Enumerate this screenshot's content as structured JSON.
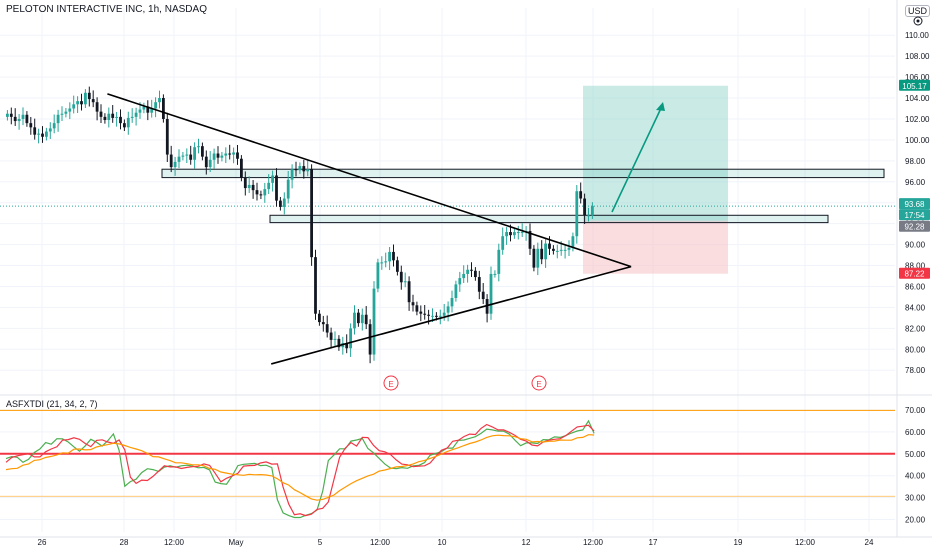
{
  "header": {
    "symbol_title": "PELOTON INTERACTIVE INC, 1h, NASDAQ",
    "currency_badge": "USD"
  },
  "price_axis": {
    "ticks": [
      "110.00",
      "108.00",
      "106.00",
      "104.00",
      "102.00",
      "100.00",
      "98.00",
      "96.00",
      "94.00",
      "92.00",
      "90.00",
      "88.00",
      "86.00",
      "84.00",
      "82.00",
      "80.00",
      "78.00"
    ],
    "tick_values": [
      110,
      108,
      106,
      104,
      102,
      100,
      98,
      96,
      94,
      92,
      90,
      88,
      86,
      84,
      82,
      80,
      78
    ]
  },
  "price_badges": {
    "target": {
      "text": "105.17",
      "color": "#089981"
    },
    "current": {
      "text": "93.68",
      "color": "#26a69a"
    },
    "countdown": {
      "text": "17:54",
      "color": "#26a69a"
    },
    "entry": {
      "text": "92.28",
      "color": "#787b86"
    },
    "stop": {
      "text": "87.22",
      "color": "#f23645"
    }
  },
  "time_axis": {
    "ticks": [
      "26",
      "28",
      "12:00",
      "May",
      "5",
      "12:00",
      "10",
      "12",
      "12:00",
      "17",
      "19",
      "12:00",
      "24"
    ]
  },
  "events": [
    "E",
    "E"
  ],
  "indicator": {
    "title": "ASFXTDI (21, 34, 2, 7)",
    "ticks": [
      "70.00",
      "60.00",
      "50.00",
      "40.00",
      "30.00",
      "20.00"
    ],
    "tick_values": [
      70,
      60,
      50,
      40,
      30,
      20
    ],
    "levels": {
      "upper": 68,
      "middle": 50,
      "lower": 32
    }
  },
  "colors": {
    "up": "#26a69a",
    "down": "#131722",
    "trendline": "#000000",
    "zone": "#26a69a",
    "reward": "#9ed9d1",
    "risk": "#f7c6c9",
    "ind_green": "#4caf50",
    "ind_red": "#f23645",
    "ind_orange": "#ff9800",
    "ind_level": "#f23645",
    "ind_band": "#ff9800",
    "axis_text": "#131722"
  },
  "chart_data": [
    {
      "type": "candlestick",
      "title": "PELOTON INTERACTIVE INC, 1h, NASDAQ",
      "ylim": [
        77,
        111
      ],
      "x_labels": [
        "26",
        "28",
        "12:00",
        "May",
        "5",
        "12:00",
        "10",
        "12",
        "12:00",
        "17",
        "19",
        "12:00",
        "24"
      ],
      "closes": [
        102.5,
        102.2,
        101.8,
        102.0,
        102.4,
        101.6,
        101.2,
        100.5,
        100.6,
        100.3,
        100.8,
        101.1,
        101.6,
        102.4,
        102.5,
        102.7,
        103.0,
        103.4,
        103.7,
        103.4,
        104.5,
        103.9,
        103.6,
        102.7,
        102.2,
        101.9,
        102.5,
        102.1,
        102.2,
        101.6,
        101.2,
        102.1,
        102.2,
        102.6,
        102.9,
        103.2,
        102.6,
        103.0,
        103.6,
        104.0,
        102.0,
        98.6,
        97.4,
        97.9,
        98.4,
        98.5,
        98.6,
        98.1,
        99.3,
        99.4,
        98.4,
        97.4,
        98.1,
        98.7,
        98.3,
        98.5,
        98.7,
        98.6,
        98.8,
        98.2,
        96.4,
        95.4,
        95.7,
        95.2,
        94.8,
        94.7,
        95.3,
        95.9,
        96.6,
        94.2,
        93.6,
        94.4,
        96.2,
        97.2,
        97.1,
        97.5,
        97.0,
        97.2,
        88.8,
        83.4,
        82.6,
        82.4,
        81.6,
        80.9,
        81.0,
        80.2,
        80.6,
        80.1,
        82.0,
        83.5,
        82.5,
        83.3,
        82.4,
        79.5,
        85.8,
        88.3,
        88.3,
        88.4,
        89.3,
        88.5,
        87.4,
        86.4,
        86.5,
        84.5,
        84.2,
        83.6,
        83.4,
        83.3,
        83.2,
        83.2,
        83.1,
        83.2,
        83.5,
        84.1,
        84.9,
        86.2,
        86.8,
        87.2,
        87.6,
        87.5,
        86.9,
        85.5,
        84.8,
        83.4,
        87.2,
        87.2,
        89.5,
        90.8,
        91.2,
        90.9,
        91.2,
        91.2,
        91.2,
        91.3,
        89.6,
        87.8,
        89.6,
        88.6,
        90.1,
        89.6,
        89.4,
        89.4,
        89.5,
        89.5,
        89.7,
        90.8,
        95.1,
        94.4,
        92.8,
        92.8,
        93.7
      ],
      "zones": [
        {
          "type": "horizontal_zone",
          "label": "resistance",
          "y0": 96.4,
          "y1": 97.2
        },
        {
          "type": "horizontal_zone",
          "label": "support",
          "y0": 92.1,
          "y1": 92.8
        }
      ],
      "trendlines": [
        {
          "from": {
            "bar": 26,
            "y": 104.4
          },
          "to": {
            "bar": 109,
            "y": 87.9
          }
        },
        {
          "from": {
            "bar": 68,
            "y": 78.6
          },
          "to": {
            "bar": 109,
            "y": 87.9
          }
        }
      ],
      "position": {
        "type": "long",
        "entry": 92.28,
        "target": 105.17,
        "stop": 87.22,
        "current": 93.68
      }
    },
    {
      "type": "line",
      "title": "ASFXTDI (21, 34, 2, 7)",
      "ylim": [
        17,
        73
      ],
      "levels": [
        68,
        50,
        32
      ],
      "series": [
        {
          "color": "#4caf50",
          "values": [
            47.8,
            48.7,
            48.4,
            46.1,
            47.5,
            50.6,
            52.2,
            55.1,
            54.4,
            56.9,
            56.8,
            55.4,
            53.2,
            51.2,
            53.6,
            56.6,
            55.3,
            53.5,
            56.0,
            59.1,
            51.6,
            35.2,
            37.3,
            38.4,
            41.4,
            43.2,
            42.8,
            41.9,
            43.9,
            44.5,
            43.9,
            44.5,
            44.8,
            44.4,
            43.6,
            43.8,
            42.6,
            37.1,
            36.4,
            36.1,
            39.9,
            44.6,
            45.2,
            45.4,
            45.6,
            44.6,
            44.8,
            43.7,
            29.0,
            23.0,
            21.8,
            20.9,
            20.9,
            21.9,
            22.7,
            24.3,
            32.9,
            46.9,
            49.5,
            52.3,
            52.3,
            55.8,
            56.3,
            57.0,
            52.4,
            50.4,
            47.9,
            45.3,
            43.5,
            43.2,
            43.7,
            43.4,
            44.5,
            44.7,
            46.0,
            49.3,
            50.2,
            51.0,
            52.6,
            52.6,
            56.1,
            56.3,
            57.1,
            57.8,
            59.3,
            61.3,
            60.9,
            60.3,
            60.3,
            59.0,
            56.2,
            53.7,
            55.0,
            55.0,
            54.7,
            56.5,
            56.4,
            57.7,
            57.5,
            58.3,
            59.5,
            60.4,
            60.9,
            65.0,
            59.3
          ]
        },
        {
          "color": "#f23645",
          "values": [
            46.1,
            48.3,
            49.1,
            49.6,
            50.1,
            48.6,
            48.6,
            50.9,
            52.2,
            53.2,
            56.2,
            56.5,
            57.3,
            56.6,
            54.7,
            53.3,
            56.1,
            56.4,
            55.4,
            54.8,
            56.3,
            51.8,
            39.3,
            36.5,
            38.0,
            37.8,
            39.7,
            42.1,
            44.5,
            44.0,
            44.0,
            43.3,
            43.8,
            44.1,
            44.3,
            45.4,
            44.7,
            41.1,
            37.2,
            38.8,
            39.9,
            41.1,
            44.4,
            44.6,
            44.7,
            45.8,
            46.3,
            45.3,
            45.4,
            34.8,
            27.0,
            22.2,
            22.6,
            21.8,
            22.4,
            24.6,
            25.1,
            28.0,
            38.3,
            48.4,
            52.6,
            55.1,
            53.5,
            57.5,
            57.4,
            53.8,
            51.4,
            50.9,
            49.7,
            47.2,
            45.3,
            45.0,
            44.1,
            44.4,
            44.5,
            45.8,
            48.8,
            51.6,
            52.6,
            55.7,
            56.2,
            57.9,
            59.0,
            58.8,
            61.6,
            63.4,
            62.3,
            60.9,
            60.9,
            59.8,
            58.4,
            56.6,
            55.8,
            54.0,
            53.6,
            55.4,
            56.2,
            56.6,
            56.9,
            58.3,
            60.3,
            62.3,
            62.6,
            63.0,
            60.4
          ]
        },
        {
          "color": "#ff9800",
          "values": [
            42.8,
            43.2,
            43.4,
            44.8,
            45.4,
            47.0,
            47.3,
            48.3,
            48.8,
            49.5,
            50.4,
            50.3,
            52.1,
            52.2,
            51.8,
            51.9,
            53.1,
            53.7,
            54.2,
            54.8,
            54.5,
            53.8,
            52.9,
            52.2,
            51.4,
            50.2,
            48.7,
            48.6,
            47.7,
            46.9,
            45.9,
            45.9,
            45.5,
            45.0,
            45.0,
            44.5,
            43.3,
            42.9,
            41.7,
            41.2,
            40.7,
            40.4,
            40.2,
            40.6,
            40.4,
            40.5,
            40.3,
            39.9,
            38.6,
            36.8,
            35.7,
            33.6,
            32.3,
            30.8,
            29.4,
            28.8,
            29.2,
            30.1,
            31.2,
            33.2,
            34.8,
            36.4,
            37.7,
            38.8,
            39.9,
            40.7,
            42.1,
            42.6,
            43.3,
            44.0,
            44.2,
            44.6,
            45.4,
            46.4,
            47.0,
            47.9,
            48.8,
            49.9,
            51.0,
            51.9,
            52.8,
            53.8,
            54.7,
            55.4,
            56.3,
            57.5,
            58.2,
            58.5,
            58.3,
            58.2,
            57.8,
            56.9,
            56.6,
            55.5,
            55.6,
            55.4,
            55.7,
            55.8,
            56.3,
            56.2,
            56.2,
            57.3,
            57.5,
            58.7,
            58.6
          ]
        }
      ]
    }
  ]
}
